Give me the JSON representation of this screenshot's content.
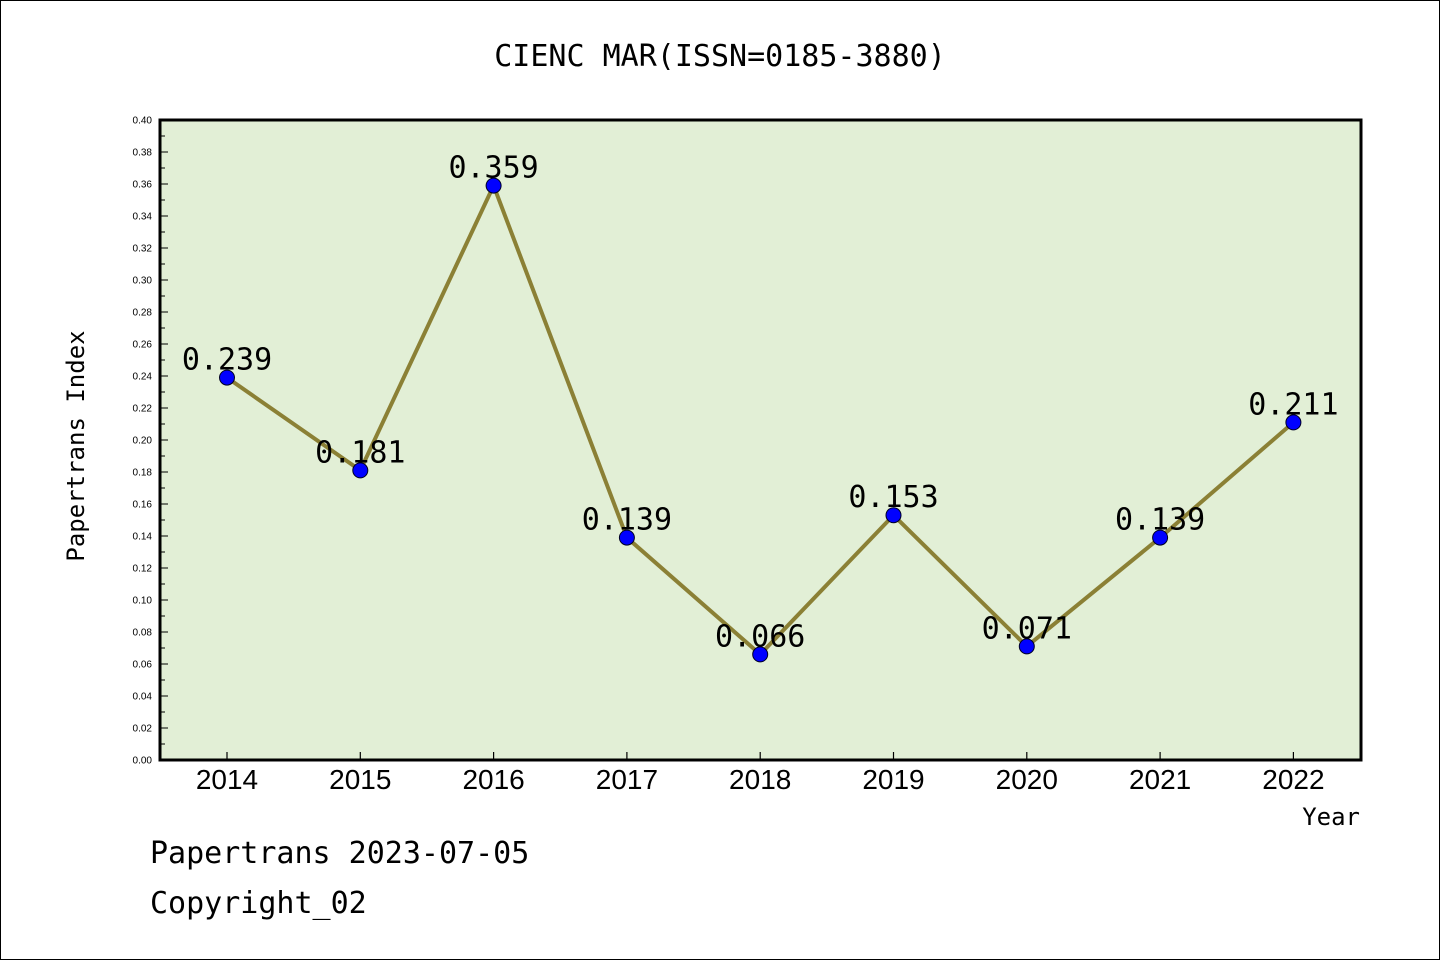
{
  "chart_data": {
    "type": "line",
    "title": "CIENC MAR(ISSN=0185-3880)",
    "xlabel": "Year",
    "ylabel": "Papertrans Index",
    "categories": [
      "2014",
      "2015",
      "2016",
      "2017",
      "2018",
      "2019",
      "2020",
      "2021",
      "2022"
    ],
    "values": [
      0.239,
      0.181,
      0.359,
      0.139,
      0.066,
      0.153,
      0.071,
      0.139,
      0.211
    ],
    "data_labels": [
      "0.239",
      "0.181",
      "0.359",
      "0.139",
      "0.066",
      "0.153",
      "0.071",
      "0.139",
      "0.211"
    ],
    "ylim": [
      0,
      0.4
    ],
    "yticks": [
      "0.00",
      "0.02",
      "0.04",
      "0.06",
      "0.08",
      "0.10",
      "0.12",
      "0.14",
      "0.16",
      "0.18",
      "0.20",
      "0.22",
      "0.24",
      "0.26",
      "0.28",
      "0.30",
      "0.32",
      "0.34",
      "0.36",
      "0.38",
      "0.40"
    ],
    "grid": false,
    "colors": {
      "plot_background": "#e2efd6",
      "line": "#8b8035",
      "marker": "#0000ff"
    }
  },
  "footer": {
    "line1": "Papertrans 2023-07-05",
    "line2": "Copyright_02"
  }
}
